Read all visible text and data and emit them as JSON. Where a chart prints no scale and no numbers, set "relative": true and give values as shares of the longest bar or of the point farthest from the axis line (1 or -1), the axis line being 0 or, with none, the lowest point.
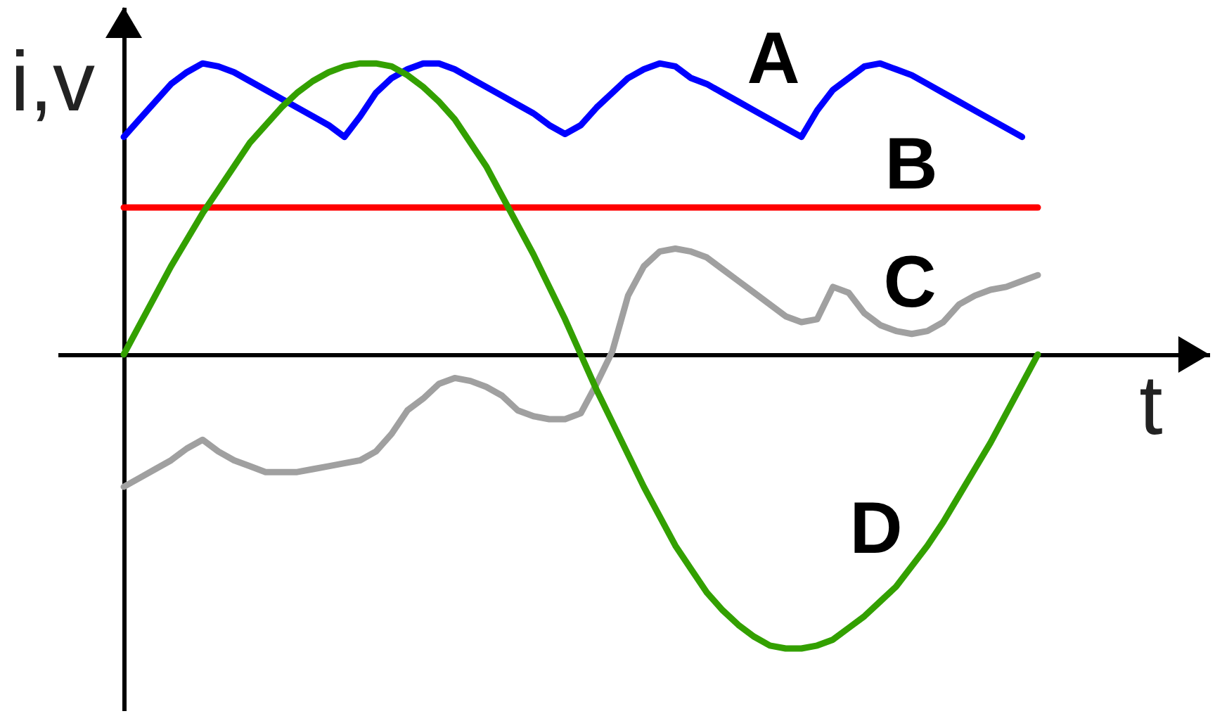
{
  "chart_data": {
    "type": "line",
    "relative": true,
    "xlabel": "t",
    "ylabel": "i,v",
    "categories": [
      null,
      null,
      null,
      null,
      null,
      null,
      null,
      null,
      null,
      null,
      null,
      null,
      null,
      null,
      null,
      null,
      null,
      null,
      null,
      null,
      null,
      null,
      null,
      null,
      null,
      null,
      null,
      null,
      null,
      null,
      null,
      null,
      null,
      null,
      null,
      null,
      null,
      null,
      null,
      null,
      null,
      null,
      null,
      null,
      null,
      null,
      null,
      null,
      null,
      null,
      null,
      null,
      null,
      null,
      null,
      null,
      null,
      null,
      null
    ],
    "series": [
      {
        "name": "A",
        "color": "#0000ff",
        "values": [
          0.74,
          0.8,
          0.86,
          0.92,
          0.96,
          0.99,
          0.98,
          0.96,
          0.93,
          0.9,
          0.87,
          0.84,
          0.81,
          0.78,
          0.74,
          0.81,
          0.89,
          0.94,
          0.97,
          0.99,
          0.99,
          0.97,
          0.94,
          0.91,
          0.88,
          0.85,
          0.82,
          0.78,
          0.75,
          0.78,
          0.84,
          0.89,
          0.94,
          0.97,
          0.99,
          0.98,
          0.94,
          0.92,
          0.89,
          0.86,
          0.83,
          0.8,
          0.77,
          0.74,
          0.83,
          0.9,
          0.94,
          0.98,
          0.99,
          0.97,
          0.95,
          0.92,
          0.89,
          0.86,
          0.83,
          0.8,
          0.77,
          0.74,
          null
        ]
      },
      {
        "name": "B",
        "color": "#ff0000",
        "values": [
          0.5,
          0.5,
          0.5,
          0.5,
          0.5,
          0.5,
          0.5,
          0.5,
          0.5,
          0.5,
          0.5,
          0.5,
          0.5,
          0.5,
          0.5,
          0.5,
          0.5,
          0.5,
          0.5,
          0.5,
          0.5,
          0.5,
          0.5,
          0.5,
          0.5,
          0.5,
          0.5,
          0.5,
          0.5,
          0.5,
          0.5,
          0.5,
          0.5,
          0.5,
          0.5,
          0.5,
          0.5,
          0.5,
          0.5,
          0.5,
          0.5,
          0.5,
          0.5,
          0.5,
          0.5,
          0.5,
          0.5,
          0.5,
          0.5,
          0.5,
          0.5,
          0.5,
          0.5,
          0.5,
          0.5,
          0.5,
          0.5,
          0.5,
          0.5
        ]
      },
      {
        "name": "C",
        "color": "#a0a0a0",
        "values": [
          -0.45,
          -0.42,
          -0.39,
          -0.36,
          -0.32,
          -0.29,
          -0.33,
          -0.36,
          -0.38,
          -0.4,
          -0.4,
          -0.4,
          -0.39,
          -0.38,
          -0.37,
          -0.36,
          -0.33,
          -0.27,
          -0.19,
          -0.15,
          -0.1,
          -0.08,
          -0.09,
          -0.11,
          -0.14,
          -0.19,
          -0.21,
          -0.22,
          -0.22,
          -0.2,
          -0.1,
          0.01,
          0.2,
          0.3,
          0.35,
          0.36,
          0.35,
          0.33,
          0.29,
          0.25,
          0.21,
          0.17,
          0.13,
          0.11,
          0.12,
          0.23,
          0.21,
          0.14,
          0.1,
          0.08,
          0.07,
          0.08,
          0.11,
          0.17,
          0.2,
          0.22,
          0.23,
          0.25,
          0.27
        ]
      },
      {
        "name": "D",
        "color": "#33a000",
        "values": [
          0,
          0.1,
          0.2,
          0.3,
          0.39,
          0.48,
          0.56,
          0.64,
          0.72,
          0.78,
          0.84,
          0.89,
          0.93,
          0.96,
          0.98,
          0.99,
          0.99,
          0.98,
          0.95,
          0.91,
          0.86,
          0.8,
          0.72,
          0.64,
          0.54,
          0.44,
          0.34,
          0.23,
          0.12,
          0,
          -0.12,
          -0.23,
          -0.34,
          -0.45,
          -0.55,
          -0.65,
          -0.73,
          -0.81,
          -0.87,
          -0.92,
          -0.96,
          -0.99,
          -1.0,
          -1.0,
          -0.99,
          -0.97,
          -0.93,
          -0.89,
          -0.84,
          -0.79,
          -0.72,
          -0.65,
          -0.57,
          -0.48,
          -0.39,
          -0.3,
          -0.2,
          -0.1,
          0
        ]
      }
    ]
  }
}
